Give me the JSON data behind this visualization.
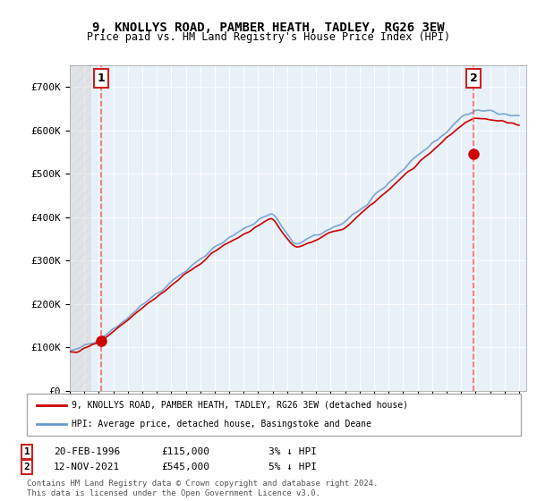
{
  "title": "9, KNOLLYS ROAD, PAMBER HEATH, TADLEY, RG26 3EW",
  "subtitle": "Price paid vs. HM Land Registry's House Price Index (HPI)",
  "sale1_date": "20-FEB-1996",
  "sale1_price": 115000,
  "sale1_label": "1",
  "sale1_hpi_diff": "3% ↓ HPI",
  "sale2_date": "12-NOV-2021",
  "sale2_price": 545000,
  "sale2_label": "2",
  "sale2_hpi_diff": "5% ↓ HPI",
  "legend_line1": "9, KNOLLYS ROAD, PAMBER HEATH, TADLEY, RG26 3EW (detached house)",
  "legend_line2": "HPI: Average price, detached house, Basingstoke and Deane",
  "footer": "Contains HM Land Registry data © Crown copyright and database right 2024.\nThis data is licensed under the Open Government Licence v3.0.",
  "ylim": [
    0,
    750000
  ],
  "yticks": [
    0,
    100000,
    200000,
    300000,
    400000,
    500000,
    600000,
    700000
  ],
  "ytick_labels": [
    "£0",
    "£100K",
    "£200K",
    "£300K",
    "£400K",
    "£500K",
    "£600K",
    "£700K"
  ],
  "bg_color": "#e8f0f8",
  "hatch_color": "#c8d0d8",
  "line_color_red": "#cc0000",
  "line_color_blue": "#6699cc",
  "sale_marker_color": "#cc0000",
  "dashed_line_color": "#ff6666",
  "box_color": "#cc2222"
}
